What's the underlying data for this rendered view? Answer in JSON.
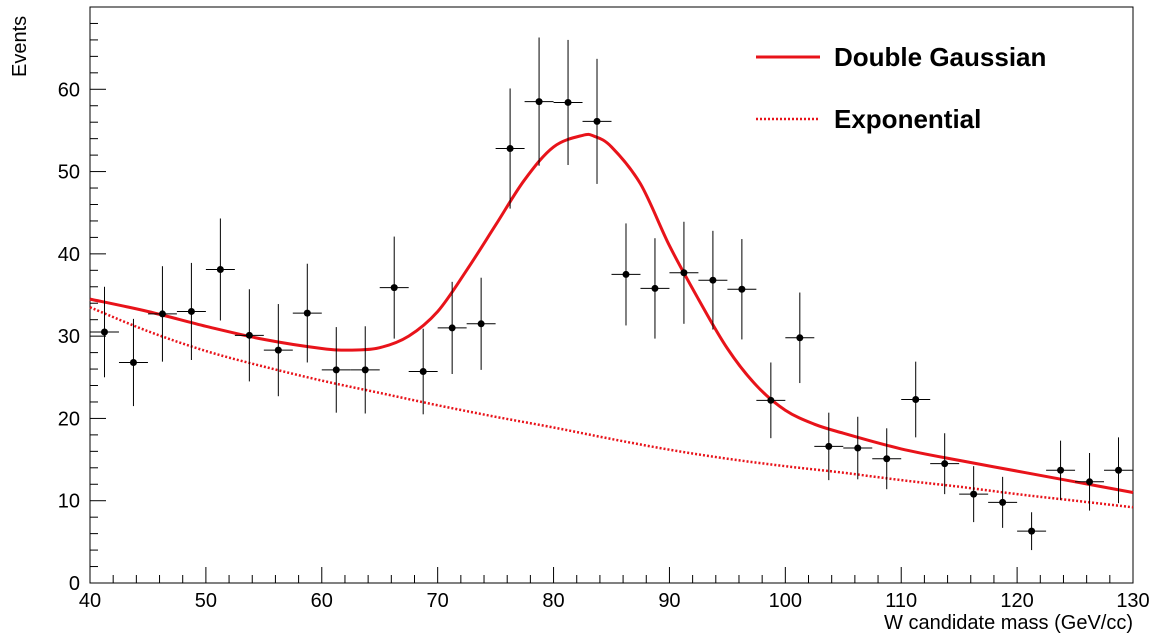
{
  "chart_data": {
    "type": "scatter",
    "xlabel": "W candidate mass (GeV/cc)",
    "ylabel": "Events",
    "xlim": [
      40,
      130
    ],
    "ylim": [
      0,
      70
    ],
    "x_ticks": [
      40,
      50,
      60,
      70,
      80,
      90,
      100,
      110,
      120,
      130
    ],
    "y_ticks": [
      0,
      10,
      20,
      30,
      40,
      50,
      60
    ],
    "grid": false,
    "legend_position": "top-right",
    "bin_half_width": 1.25,
    "points": [
      {
        "x": 41.25,
        "y": 30.5,
        "err_lo": 5.5,
        "err_hi": 5.5
      },
      {
        "x": 43.75,
        "y": 26.8,
        "err_lo": 5.3,
        "err_hi": 5.3
      },
      {
        "x": 46.25,
        "y": 32.7,
        "err_lo": 5.8,
        "err_hi": 5.8
      },
      {
        "x": 48.75,
        "y": 33.0,
        "err_lo": 5.9,
        "err_hi": 5.9
      },
      {
        "x": 51.25,
        "y": 38.1,
        "err_lo": 6.2,
        "err_hi": 6.2
      },
      {
        "x": 53.75,
        "y": 30.1,
        "err_lo": 5.6,
        "err_hi": 5.6
      },
      {
        "x": 56.25,
        "y": 28.3,
        "err_lo": 5.6,
        "err_hi": 5.6
      },
      {
        "x": 58.75,
        "y": 32.8,
        "err_lo": 6.0,
        "err_hi": 6.0
      },
      {
        "x": 61.25,
        "y": 25.9,
        "err_lo": 5.2,
        "err_hi": 5.2
      },
      {
        "x": 63.75,
        "y": 25.9,
        "err_lo": 5.3,
        "err_hi": 5.3
      },
      {
        "x": 66.25,
        "y": 35.9,
        "err_lo": 6.2,
        "err_hi": 6.2
      },
      {
        "x": 68.75,
        "y": 25.7,
        "err_lo": 5.2,
        "err_hi": 5.2
      },
      {
        "x": 71.25,
        "y": 31.0,
        "err_lo": 5.6,
        "err_hi": 5.6
      },
      {
        "x": 73.75,
        "y": 31.5,
        "err_lo": 5.6,
        "err_hi": 5.6
      },
      {
        "x": 76.25,
        "y": 52.8,
        "err_lo": 7.3,
        "err_hi": 7.3
      },
      {
        "x": 78.75,
        "y": 58.5,
        "err_lo": 7.8,
        "err_hi": 7.8
      },
      {
        "x": 81.25,
        "y": 58.4,
        "err_lo": 7.6,
        "err_hi": 7.6
      },
      {
        "x": 83.75,
        "y": 56.1,
        "err_lo": 7.6,
        "err_hi": 7.6
      },
      {
        "x": 86.25,
        "y": 37.5,
        "err_lo": 6.2,
        "err_hi": 6.2
      },
      {
        "x": 88.75,
        "y": 35.8,
        "err_lo": 6.1,
        "err_hi": 6.1
      },
      {
        "x": 91.25,
        "y": 37.7,
        "err_lo": 6.2,
        "err_hi": 6.2
      },
      {
        "x": 93.75,
        "y": 36.8,
        "err_lo": 6.0,
        "err_hi": 6.0
      },
      {
        "x": 96.25,
        "y": 35.7,
        "err_lo": 6.1,
        "err_hi": 6.1
      },
      {
        "x": 98.75,
        "y": 22.2,
        "err_lo": 4.6,
        "err_hi": 4.6
      },
      {
        "x": 101.25,
        "y": 29.8,
        "err_lo": 5.5,
        "err_hi": 5.5
      },
      {
        "x": 103.75,
        "y": 16.6,
        "err_lo": 4.1,
        "err_hi": 4.1
      },
      {
        "x": 106.25,
        "y": 16.4,
        "err_lo": 3.8,
        "err_hi": 3.8
      },
      {
        "x": 108.75,
        "y": 15.1,
        "err_lo": 3.7,
        "err_hi": 3.7
      },
      {
        "x": 111.25,
        "y": 22.3,
        "err_lo": 4.6,
        "err_hi": 4.6
      },
      {
        "x": 113.75,
        "y": 14.5,
        "err_lo": 3.7,
        "err_hi": 3.7
      },
      {
        "x": 116.25,
        "y": 10.8,
        "err_lo": 3.4,
        "err_hi": 3.4
      },
      {
        "x": 118.75,
        "y": 9.8,
        "err_lo": 3.1,
        "err_hi": 3.1
      },
      {
        "x": 121.25,
        "y": 6.3,
        "err_lo": 2.3,
        "err_hi": 2.3
      },
      {
        "x": 123.75,
        "y": 13.7,
        "err_lo": 3.6,
        "err_hi": 3.6
      },
      {
        "x": 126.25,
        "y": 12.3,
        "err_lo": 3.5,
        "err_hi": 3.5
      },
      {
        "x": 128.75,
        "y": 13.7,
        "err_lo": 4.0,
        "err_hi": 4.0
      }
    ],
    "series": [
      {
        "name": "Double Gaussian",
        "color": "#e8131a",
        "style": "solid",
        "x": [
          40,
          45,
          50,
          55,
          60,
          62.5,
          65,
          67.5,
          70,
          72.5,
          75,
          77.5,
          80,
          82.5,
          83.5,
          85,
          87.5,
          90,
          92.5,
          95,
          97.5,
          100,
          102.5,
          105,
          110,
          115,
          120,
          125,
          130
        ],
        "y": [
          34.5,
          33.0,
          31.2,
          29.6,
          28.5,
          28.3,
          28.6,
          30.0,
          33.0,
          38.0,
          43.5,
          49.0,
          53.0,
          54.4,
          54.3,
          53.0,
          48.5,
          41.0,
          34.5,
          28.5,
          24.0,
          21.0,
          19.3,
          18.2,
          16.3,
          14.9,
          13.6,
          12.3,
          11.0
        ]
      },
      {
        "name": "Exponential",
        "color": "#e8131a",
        "style": "dotted",
        "x": [
          40,
          45,
          50,
          55,
          60,
          65,
          70,
          75,
          80,
          85,
          90,
          95,
          100,
          105,
          110,
          115,
          120,
          125,
          130
        ],
        "y": [
          33.5,
          30.6,
          28.2,
          26.3,
          24.6,
          23.1,
          21.6,
          20.2,
          18.9,
          17.5,
          16.2,
          15.1,
          14.2,
          13.4,
          12.5,
          11.7,
          10.8,
          10.0,
          9.2
        ]
      }
    ]
  }
}
